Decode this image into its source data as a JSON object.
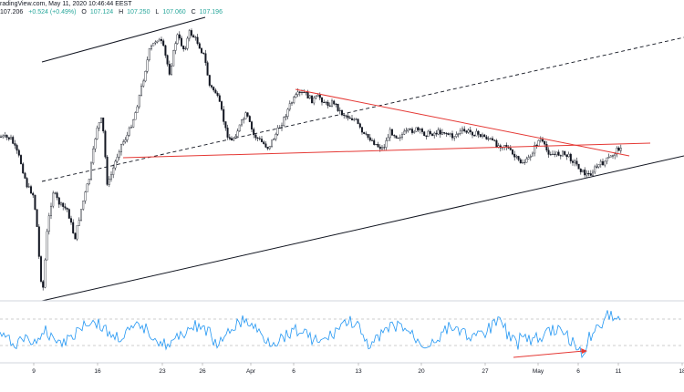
{
  "header": {
    "line1": "radingView.com, May 11, 2020 10:46:44 EEST",
    "open_value": "107.206",
    "change": "+0.524 (+0.49%)",
    "open_label": "O",
    "open_value2": "107.124",
    "high_label": "H",
    "high_value": "107.250",
    "low_label": "L",
    "low_value": "107.060",
    "close_label": "C",
    "close_value": "107.196"
  },
  "x_axis": {
    "ticks": [
      "9",
      "16",
      "23",
      "26",
      "Apr",
      "6",
      "13",
      "20",
      "27",
      "May",
      "6",
      "11",
      "18"
    ]
  },
  "colors": {
    "candles": "#131722",
    "trendline": "#131722",
    "red_line": "#e53935",
    "rsi": "#2196f3",
    "rsi_guides": "#9e9e9e",
    "arrow": "#e53935"
  },
  "chart_data": {
    "type": "line",
    "title": "",
    "xlabel": "",
    "ylabel": "",
    "x": [
      "9",
      "16",
      "23",
      "26",
      "Apr",
      "6",
      "13",
      "20",
      "27",
      "May",
      "6",
      "11"
    ],
    "series": [
      {
        "values": [
          106.3,
          107.6,
          111.2,
          110.4,
          108.2,
          109.6,
          108.4,
          108.0,
          107.9,
          107.3,
          106.8,
          107.2
        ]
      }
    ],
    "grid": false
  }
}
